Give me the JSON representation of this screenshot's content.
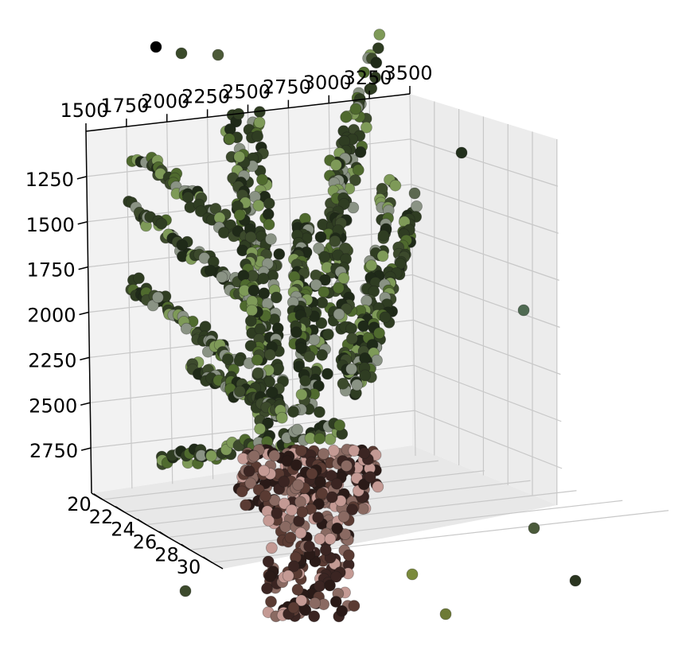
{
  "chart_data": {
    "type": "scatter",
    "projection": "3d",
    "title": "",
    "xlabel": "",
    "ylabel": "",
    "zlabel": "",
    "grid": true,
    "legend": "none",
    "x_axis": {
      "range": [
        1500,
        3500
      ],
      "ticks": [
        1500,
        1750,
        2000,
        2250,
        2500,
        2750,
        3000,
        3250,
        3500
      ],
      "tick_labels": [
        "1500",
        "1750",
        "2000",
        "2250",
        "2500",
        "2750",
        "3000",
        "3250",
        "3500"
      ]
    },
    "z_axis": {
      "range": [
        1000,
        3000
      ],
      "inverted": true,
      "ticks": [
        1250,
        1500,
        1750,
        2000,
        2250,
        2500,
        2750
      ],
      "tick_labels": [
        "1250",
        "1500",
        "1750",
        "2000",
        "2250",
        "2500",
        "2750"
      ]
    },
    "y_axis": {
      "range": [
        19,
        31
      ],
      "ticks": [
        20,
        22,
        24,
        26,
        28,
        30
      ],
      "tick_labels": [
        "20",
        "22",
        "24",
        "26",
        "28",
        "30"
      ]
    },
    "colors": {
      "leaf_dark": "#2f3d22",
      "leaf_mid": "#4f6a2e",
      "leaf_light": "#7e9a58",
      "leaf_grey": "#8a9384",
      "root_dark": "#2a1a17",
      "root_mid": "#5a3b33",
      "root_pink": "#c49a94",
      "pane_fill": "#f2f2f2",
      "grid": "#c8c8c8"
    },
    "series": [
      {
        "part": "leaves",
        "points_range_x": [
          1600,
          3300
        ],
        "points_range_z": [
          1050,
          2700
        ],
        "points_range_y": [
          21,
          30
        ]
      },
      {
        "part": "crown_and_root",
        "points_range_x": [
          2300,
          2900
        ],
        "points_range_z": [
          2700,
          3000
        ],
        "points_range_y": [
          20,
          29
        ]
      }
    ]
  }
}
